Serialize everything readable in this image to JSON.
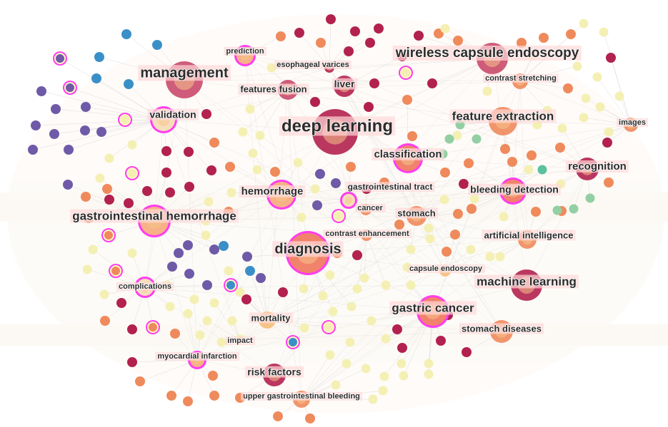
{
  "nodes": [
    {
      "label": "prediction"
    },
    {
      "label": "esophageal varices"
    },
    {
      "label": "wireless capsule endoscopy"
    },
    {
      "label": "management"
    },
    {
      "label": "contrast stretching"
    },
    {
      "label": "features fusion"
    },
    {
      "label": "liver"
    },
    {
      "label": "validation"
    },
    {
      "label": "deep learning"
    },
    {
      "label": "feature extraction"
    },
    {
      "label": "images"
    },
    {
      "label": "classification"
    },
    {
      "label": "recognition"
    },
    {
      "label": "hemorrhage"
    },
    {
      "label": "gastrointestinal tract"
    },
    {
      "label": "bleeding detection"
    },
    {
      "label": "cancer"
    },
    {
      "label": "stomach"
    },
    {
      "label": "gastrointestinal hemorrhage"
    },
    {
      "label": "contrast enhancement"
    },
    {
      "label": "artificial intelligence"
    },
    {
      "label": "diagnosis"
    },
    {
      "label": "capsule endoscopy"
    },
    {
      "label": "machine learning"
    },
    {
      "label": "complications"
    },
    {
      "label": "gastric cancer"
    },
    {
      "label": "mortality"
    },
    {
      "label": "stomach diseases"
    },
    {
      "label": "impact"
    },
    {
      "label": "myocardial infarction"
    },
    {
      "label": "risk factors"
    },
    {
      "label": "upper gastrointestinal bleeding"
    }
  ]
}
